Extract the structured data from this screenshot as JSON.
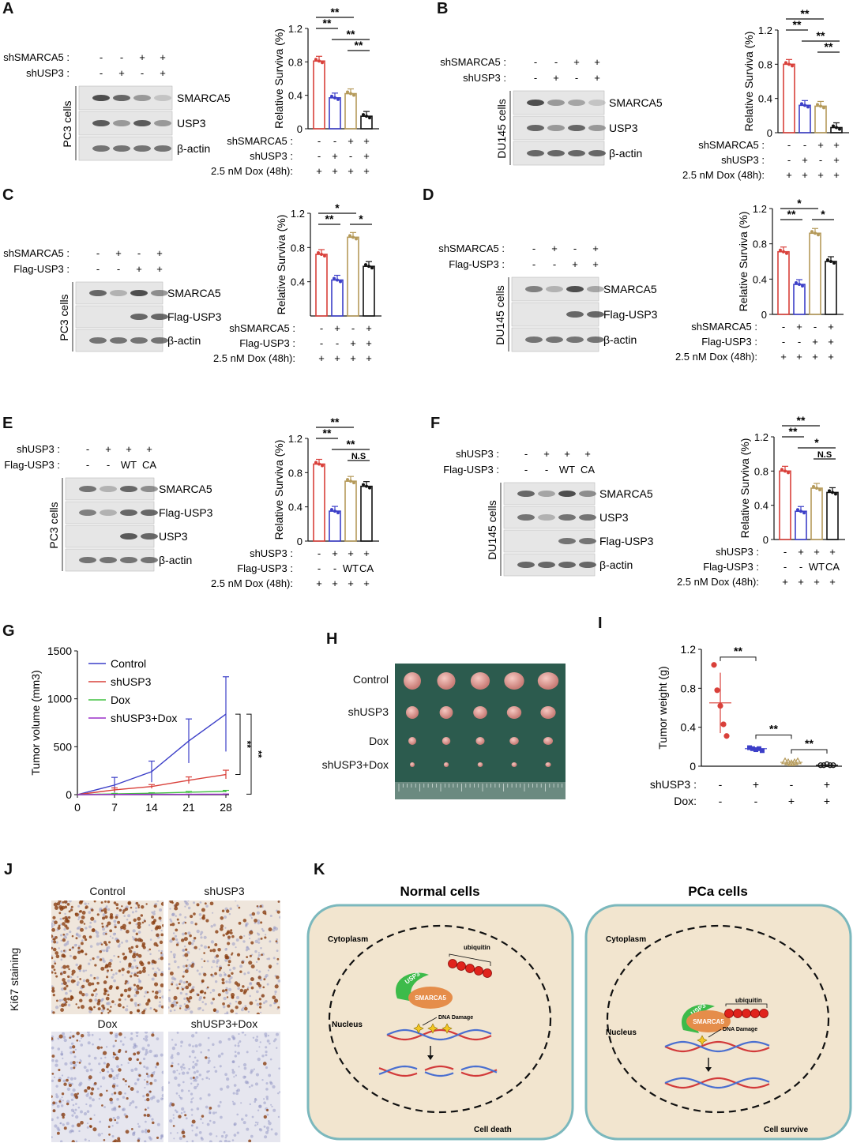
{
  "panel_labels": {
    "A": "A",
    "B": "B",
    "C": "C",
    "D": "D",
    "E": "E",
    "F": "F",
    "G": "G",
    "H": "H",
    "I": "I",
    "J": "J",
    "K": "K"
  },
  "dox_label": "2.5 nM Dox (48h):",
  "ylabel_survival": "Relative Surviva (%)",
  "panels": {
    "A": {
      "cell": "PC3 cells",
      "wb_rows": [
        {
          "label": "shSMARCA5 :",
          "vals": [
            "-",
            "-",
            "+",
            "+"
          ]
        },
        {
          "label": "shUSP3 :",
          "vals": [
            "-",
            "+",
            "-",
            "+"
          ]
        }
      ],
      "bands": [
        "SMARCA5",
        "USP3",
        "β-actin"
      ],
      "bar_rows": [
        {
          "label": "shSMARCA5 :",
          "vals": [
            "-",
            "-",
            "+",
            "+"
          ]
        },
        {
          "label": "shUSP3 :",
          "vals": [
            "-",
            "+",
            "-",
            "+"
          ]
        },
        {
          "label": "2.5 nM Dox (48h):",
          "vals": [
            "+",
            "+",
            "+",
            "+"
          ]
        }
      ],
      "sig": [
        "**",
        "**",
        "**",
        "**"
      ]
    },
    "B": {
      "cell": "DU145 cells",
      "wb_rows": [
        {
          "label": "shSMARCA5 :",
          "vals": [
            "-",
            "-",
            "+",
            "+"
          ]
        },
        {
          "label": "shUSP3 :",
          "vals": [
            "-",
            "+",
            "-",
            "+"
          ]
        }
      ],
      "bands": [
        "SMARCA5",
        "USP3",
        "β-actin"
      ],
      "bar_rows": [
        {
          "label": "shSMARCA5 :",
          "vals": [
            "-",
            "-",
            "+",
            "+"
          ]
        },
        {
          "label": "shUSP3 :",
          "vals": [
            "-",
            "+",
            "-",
            "+"
          ]
        },
        {
          "label": "2.5 nM Dox (48h):",
          "vals": [
            "+",
            "+",
            "+",
            "+"
          ]
        }
      ],
      "sig": [
        "**",
        "**",
        "**",
        "**"
      ]
    },
    "C": {
      "cell": "PC3 cells",
      "wb_rows": [
        {
          "label": "shSMARCA5 :",
          "vals": [
            "-",
            "+",
            "-",
            "+"
          ]
        },
        {
          "label": "Flag-USP3 :",
          "vals": [
            "-",
            "-",
            "+",
            "+"
          ]
        }
      ],
      "bands": [
        "SMARCA5",
        "Flag-USP3",
        "β-actin"
      ],
      "bar_rows": [
        {
          "label": "shSMARCA5 :",
          "vals": [
            "-",
            "+",
            "-",
            "+"
          ]
        },
        {
          "label": "Flag-USP3 :",
          "vals": [
            "-",
            "-",
            "+",
            "+"
          ]
        },
        {
          "label": "2.5 nM Dox (48h):",
          "vals": [
            "+",
            "+",
            "+",
            "+"
          ]
        }
      ],
      "sig": [
        "**",
        "*",
        "*"
      ]
    },
    "D": {
      "cell": "DU145 cells",
      "wb_rows": [
        {
          "label": "shSMARCA5 :",
          "vals": [
            "-",
            "+",
            "-",
            "+"
          ]
        },
        {
          "label": "Flag-USP3 :",
          "vals": [
            "-",
            "-",
            "+",
            "+"
          ]
        }
      ],
      "bands": [
        "SMARCA5",
        "Flag-USP3",
        "β-actin"
      ],
      "bar_rows": [
        {
          "label": "shSMARCA5 :",
          "vals": [
            "-",
            "+",
            "-",
            "+"
          ]
        },
        {
          "label": "Flag-USP3 :",
          "vals": [
            "-",
            "-",
            "+",
            "+"
          ]
        },
        {
          "label": "2.5 nM Dox (48h):",
          "vals": [
            "+",
            "+",
            "+",
            "+"
          ]
        }
      ],
      "sig": [
        "**",
        "*",
        "*"
      ]
    },
    "E": {
      "cell": "PC3 cells",
      "wb_rows": [
        {
          "label": "shUSP3 :",
          "vals": [
            "-",
            "+",
            "+",
            "+"
          ]
        },
        {
          "label": "Flag-USP3 :",
          "vals": [
            "-",
            "-",
            "WT",
            "CA"
          ]
        }
      ],
      "bands": [
        "SMARCA5",
        "Flag-USP3",
        "USP3",
        "β-actin"
      ],
      "bar_rows": [
        {
          "label": "shUSP3 :",
          "vals": [
            "-",
            "+",
            "+",
            "+"
          ]
        },
        {
          "label": "Flag-USP3 :",
          "vals": [
            "-",
            "-",
            "WT",
            "CA"
          ]
        },
        {
          "label": "2.5 nM Dox (48h):",
          "vals": [
            "+",
            "+",
            "+",
            "+"
          ]
        }
      ],
      "sig": [
        "**",
        "**",
        "**",
        "N.S"
      ]
    },
    "F": {
      "cell": "DU145 cells",
      "wb_rows": [
        {
          "label": "shUSP3 :",
          "vals": [
            "-",
            "+",
            "+",
            "+"
          ]
        },
        {
          "label": "Flag-USP3 :",
          "vals": [
            "-",
            "-",
            "WT",
            "CA"
          ]
        }
      ],
      "bands": [
        "SMARCA5",
        "USP3",
        "Flag-USP3",
        "β-actin"
      ],
      "bar_rows": [
        {
          "label": "shUSP3 :",
          "vals": [
            "-",
            "+",
            "+",
            "+"
          ]
        },
        {
          "label": "Flag-USP3 :",
          "vals": [
            "-",
            "-",
            "WT",
            "CA"
          ]
        },
        {
          "label": "2.5 nM Dox (48h):",
          "vals": [
            "+",
            "+",
            "+",
            "+"
          ]
        }
      ],
      "sig": [
        "**",
        "**",
        "*",
        "N.S"
      ]
    }
  },
  "panelH": {
    "rows": [
      "Control",
      "shUSP3",
      "Dox",
      "shUSP3+Dox"
    ]
  },
  "panelI": {
    "rows": [
      {
        "label": "shUSP3 :",
        "vals": [
          "-",
          "+",
          "-",
          "+"
        ]
      },
      {
        "label": "Dox:",
        "vals": [
          "-",
          "-",
          "+",
          "+"
        ]
      }
    ],
    "sig": [
      "**",
      "**",
      "**"
    ]
  },
  "panelJ": {
    "side_label": "Ki67 staining",
    "titles": [
      "Control",
      "shUSP3",
      "Dox",
      "shUSP3+Dox"
    ]
  },
  "panelK": {
    "normal": {
      "title": "Normal cells",
      "cytoplasm": "Cytoplasm",
      "nucleus": "Nucleus",
      "usp3": "USP3",
      "smarca5": "SMARCA5",
      "ubiquitin": "ubiquitin",
      "damage": "DNA Damage",
      "outcome": "Cell death"
    },
    "pca": {
      "title": "PCa cells",
      "cytoplasm": "Cytoplasm",
      "nucleus": "Nucleus",
      "usp3": "USP3",
      "smarca5": "SMARCA5",
      "ubiquitin": "ubiquitin",
      "damage": "DNA Damage",
      "outcome": "Cell survive"
    }
  },
  "colors": {
    "red": "#d9403a",
    "blue": "#3c3fc8",
    "gold": "#b59a5a",
    "black": "#111111",
    "green": "#40c040",
    "purple": "#9b30c8"
  },
  "chart_data": [
    {
      "id": "A",
      "type": "bar",
      "title": "",
      "ylabel": "Relative Surviva (%)",
      "ylim": [
        0,
        1.2
      ],
      "yticks": [
        0,
        0.4,
        0.8,
        1.2
      ],
      "values": [
        0.81,
        0.37,
        0.42,
        0.15
      ]
    },
    {
      "id": "B",
      "type": "bar",
      "title": "",
      "ylabel": "Relative Surviva (%)",
      "ylim": [
        0,
        1.2
      ],
      "yticks": [
        0,
        0.4,
        0.8,
        1.2
      ],
      "values": [
        0.8,
        0.32,
        0.31,
        0.06
      ]
    },
    {
      "id": "C",
      "type": "bar",
      "title": "",
      "ylabel": "Relative Surviva (%)",
      "ylim": [
        0,
        1.2
      ],
      "yticks": [
        0.4,
        0.8,
        1.2
      ],
      "values": [
        0.72,
        0.42,
        0.92,
        0.58
      ]
    },
    {
      "id": "D",
      "type": "bar",
      "title": "",
      "ylabel": "Relative Surviva (%)",
      "ylim": [
        0,
        1.2
      ],
      "yticks": [
        0,
        0.4,
        0.8,
        1.2
      ],
      "values": [
        0.71,
        0.34,
        0.92,
        0.6
      ]
    },
    {
      "id": "E",
      "type": "bar",
      "title": "",
      "ylabel": "Relative Surviva (%)",
      "ylim": [
        0,
        1.2
      ],
      "yticks": [
        0,
        0.4,
        0.8,
        1.2
      ],
      "values": [
        0.9,
        0.35,
        0.7,
        0.64
      ]
    },
    {
      "id": "F",
      "type": "bar",
      "title": "",
      "ylabel": "Relative Surviva (%)",
      "ylim": [
        0,
        1.2
      ],
      "yticks": [
        0,
        0.4,
        0.8,
        1.2
      ],
      "values": [
        0.8,
        0.33,
        0.6,
        0.55
      ]
    },
    {
      "id": "G",
      "type": "line",
      "title": "",
      "xlabel": "",
      "ylabel": "Tumor volume (mm3)",
      "x": [
        0,
        7,
        14,
        21,
        28
      ],
      "ylim": [
        0,
        1500
      ],
      "yticks": [
        0,
        500,
        1000,
        1500
      ],
      "series": [
        {
          "name": "Control",
          "values": [
            0,
            100,
            240,
            560,
            840
          ],
          "err": [
            0,
            80,
            110,
            230,
            390
          ]
        },
        {
          "name": "shUSP3",
          "values": [
            0,
            50,
            85,
            150,
            210
          ],
          "err": [
            0,
            20,
            20,
            35,
            45
          ]
        },
        {
          "name": "Dox",
          "values": [
            0,
            8,
            15,
            25,
            35
          ],
          "err": [
            0,
            5,
            5,
            8,
            10
          ]
        },
        {
          "name": "shUSP3+Dox",
          "values": [
            0,
            2,
            3,
            4,
            5
          ],
          "err": [
            0,
            1,
            1,
            1,
            2
          ]
        }
      ],
      "sig": [
        "**",
        "**"
      ]
    },
    {
      "id": "I",
      "type": "scatter",
      "title": "",
      "ylabel": "Tumor weight (g)",
      "ylim": [
        0,
        1.2
      ],
      "yticks": [
        0,
        0.4,
        0.8,
        1.2
      ],
      "groups": [
        [
          1.04,
          0.78,
          0.62,
          0.43,
          0.31
        ],
        [
          0.19,
          0.18,
          0.17,
          0.18,
          0.16
        ],
        [
          0.05,
          0.04,
          0.03,
          0.04,
          0.05
        ],
        [
          0.01,
          0.01,
          0.02,
          0.01,
          0.01
        ]
      ],
      "means": [
        0.65,
        0.18,
        0.04,
        0.01
      ]
    }
  ]
}
